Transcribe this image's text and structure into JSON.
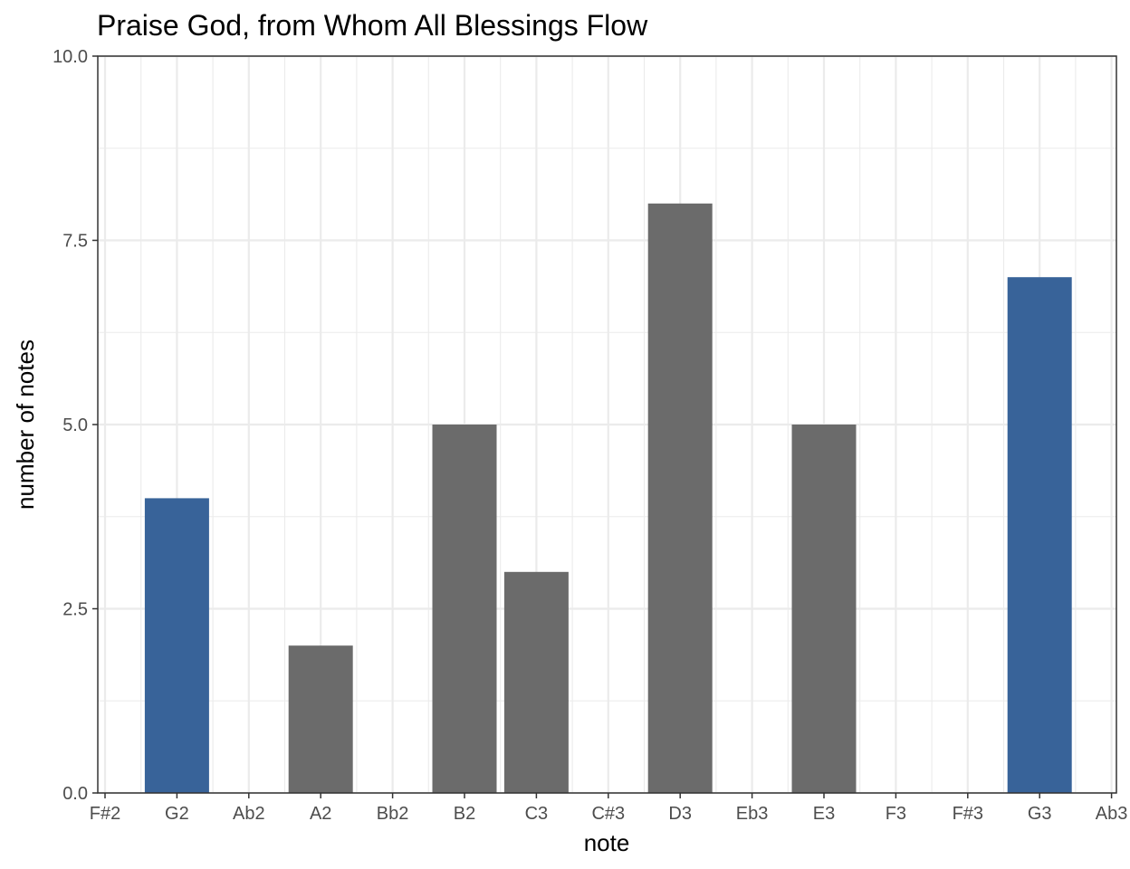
{
  "chart_data": {
    "type": "bar",
    "title": "Praise God, from Whom All Blessings Flow",
    "xlabel": "note",
    "ylabel": "number of notes",
    "ylim": [
      0,
      10
    ],
    "yticks": [
      "0.0",
      "2.5",
      "5.0",
      "7.5",
      "10.0"
    ],
    "ytick_values": [
      0,
      2.5,
      5,
      7.5,
      10
    ],
    "categories": [
      "F#2",
      "G2",
      "Ab2",
      "A2",
      "Bb2",
      "B2",
      "C3",
      "C#3",
      "D3",
      "Eb3",
      "E3",
      "F3",
      "F#3",
      "G3",
      "Ab3"
    ],
    "values": [
      0,
      4,
      0,
      2,
      0,
      5,
      3,
      0,
      8,
      0,
      5,
      0,
      0,
      7,
      0
    ],
    "highlight": [
      false,
      true,
      false,
      false,
      false,
      false,
      false,
      false,
      false,
      false,
      false,
      false,
      false,
      true,
      false
    ],
    "grid": true,
    "legend": "none",
    "colors": {
      "bar": "#6b6b6b",
      "highlight": "#386399",
      "grid": "#ebebeb",
      "panel_border": "#333333",
      "tick_text": "#4d4d4d"
    }
  }
}
